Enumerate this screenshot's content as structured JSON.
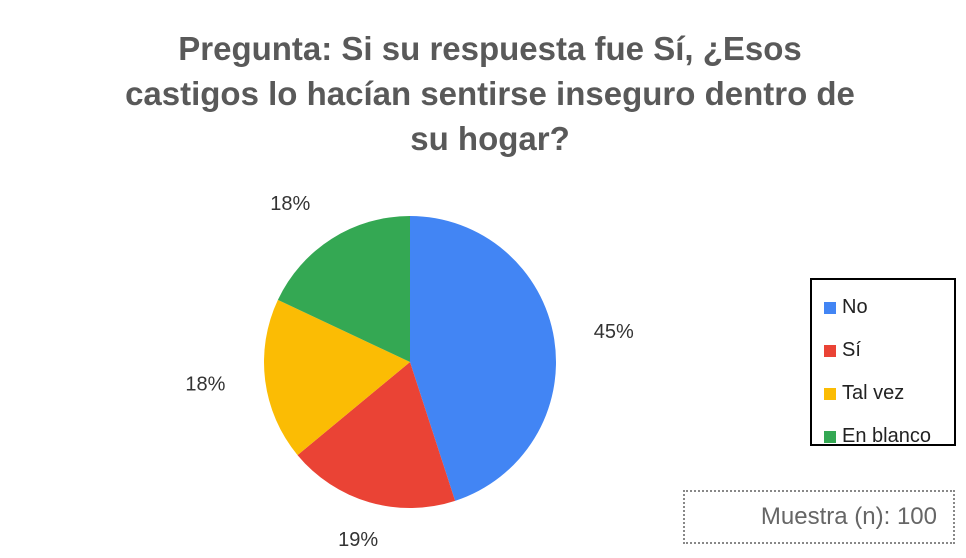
{
  "chart_data": {
    "type": "pie",
    "title": "Pregunta: Si su respuesta fue Sí, ¿Esos castigos lo hacían sentirse inseguro dentro de su hogar?",
    "categories": [
      "No",
      "Sí",
      "Tal vez",
      "En blanco"
    ],
    "values": [
      45,
      19,
      18,
      18
    ],
    "value_labels": [
      "45%",
      "19%",
      "18%",
      "18%"
    ],
    "colors": [
      "#4285f4",
      "#ea4335",
      "#fbbc04",
      "#34a853"
    ],
    "legend": "right",
    "annotation": "Muestra (n): 100"
  }
}
